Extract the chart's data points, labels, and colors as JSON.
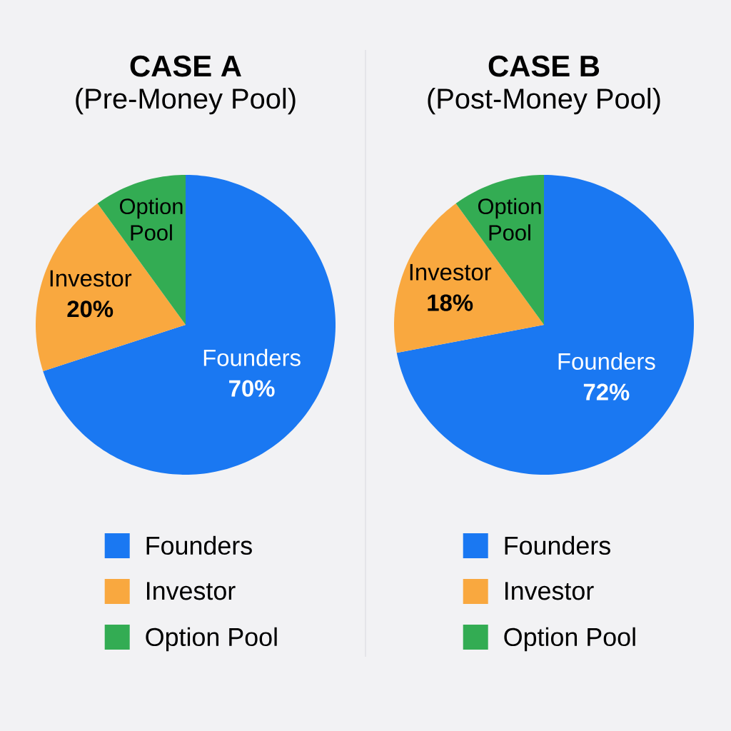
{
  "chart_data": [
    {
      "type": "pie",
      "title": "CASE A",
      "subtitle": "(Pre-Money Pool)",
      "categories": [
        "Founders",
        "Investor",
        "Option Pool"
      ],
      "values": [
        70,
        20,
        10
      ],
      "colors": [
        "#1a78f2",
        "#f9a83f",
        "#33ac53"
      ],
      "value_labels": [
        "70%",
        "20%",
        null
      ],
      "legend": "bottom"
    },
    {
      "type": "pie",
      "title": "CASE B",
      "subtitle": "(Post-Money Pool)",
      "categories": [
        "Founders",
        "Investor",
        "Option Pool"
      ],
      "values": [
        72,
        18,
        10
      ],
      "colors": [
        "#1a78f2",
        "#f9a83f",
        "#33ac53"
      ],
      "value_labels": [
        "72%",
        "18%",
        null
      ],
      "legend": "bottom"
    }
  ]
}
